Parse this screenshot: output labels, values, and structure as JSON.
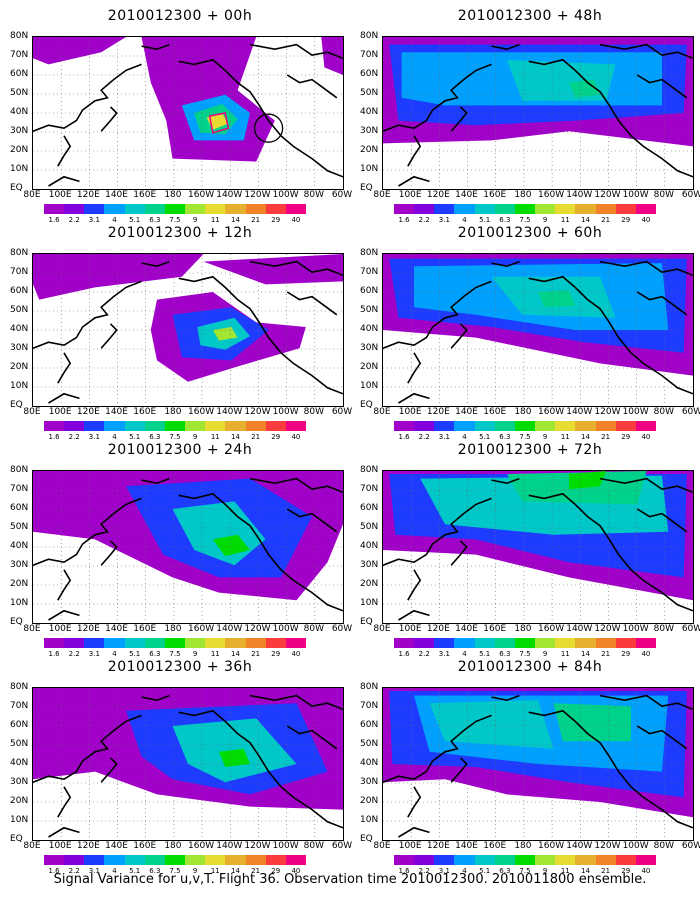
{
  "footer": "Signal Variance for u,v,T. Flight 36. Observation time 2010012300. 2010011800 ensemble.",
  "latitude_labels": [
    "80N",
    "70N",
    "60N",
    "50N",
    "40N",
    "30N",
    "20N",
    "10N",
    "EQ"
  ],
  "longitude_labels": [
    "80E",
    "100E",
    "120E",
    "140E",
    "160E",
    "180",
    "160W",
    "140W",
    "120W",
    "100W",
    "80W",
    "60W"
  ],
  "colorbar": {
    "levels": [
      "1.6",
      "2.2",
      "3.1",
      "4",
      "5.1",
      "6.3",
      "7.5",
      "9",
      "11",
      "14",
      "21",
      "29",
      "40"
    ],
    "colors": [
      "#a000c8",
      "#8200dc",
      "#1e3cff",
      "#00a0ff",
      "#00c8c8",
      "#00d28c",
      "#00dc00",
      "#a0e632",
      "#e6dc32",
      "#e6af2d",
      "#f08228",
      "#fa3c3c",
      "#f00082"
    ]
  },
  "panels": [
    {
      "title": "2010012300 + 00h"
    },
    {
      "title": "2010012300 + 48h"
    },
    {
      "title": "2010012300 + 12h"
    },
    {
      "title": "2010012300 + 60h"
    },
    {
      "title": "2010012300 + 24h"
    },
    {
      "title": "2010012300 + 72h"
    },
    {
      "title": "2010012300 + 36h"
    },
    {
      "title": "2010012300 + 84h"
    }
  ]
}
